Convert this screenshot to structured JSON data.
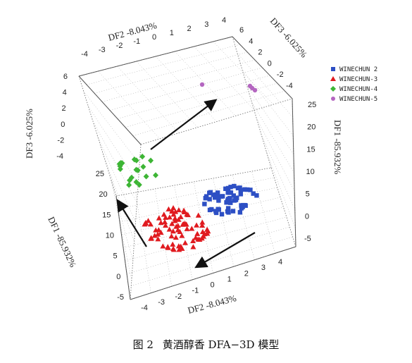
{
  "chart_data": {
    "type": "scatter",
    "title": "",
    "axes": {
      "df1": {
        "label": "DF1 -85.932%",
        "ticks": [
          "-5",
          "0",
          "5",
          "10",
          "15",
          "20",
          "25"
        ]
      },
      "df2": {
        "label": "DF2 -8.043%",
        "ticks": [
          "-4",
          "-3",
          "-2",
          "-1",
          "0",
          "1",
          "2",
          "3",
          "4"
        ]
      },
      "df3": {
        "label": "DF3 -6.025%",
        "ticks": [
          "-4",
          "-2",
          "0",
          "2",
          "4",
          "6"
        ]
      }
    },
    "legend_position": "top-right",
    "series": [
      {
        "name": "WINECHUN 2",
        "marker": "square",
        "color": "#2d4fc4",
        "count": 60,
        "x_range": [
          -2,
          4
        ],
        "y_range": [
          0,
          10
        ]
      },
      {
        "name": "WINECHUN-3",
        "marker": "triangle",
        "color": "#e01a1f",
        "count": 80,
        "x_range": [
          -4,
          1
        ],
        "y_range": [
          -5,
          5
        ]
      },
      {
        "name": "WINECHUN-4",
        "marker": "diamond",
        "color": "#3db535",
        "count": 20,
        "x_range": [
          -4,
          -1
        ],
        "y_range": [
          15,
          25
        ]
      },
      {
        "name": "WINECHUN-5",
        "marker": "circle",
        "color": "#b466c0",
        "count": 4,
        "x_range": [
          2,
          4
        ],
        "y_range": [
          20,
          25
        ]
      }
    ]
  },
  "caption": {
    "fig": "图 2",
    "text": "黄酒醇香 DFA−3D 模型"
  }
}
